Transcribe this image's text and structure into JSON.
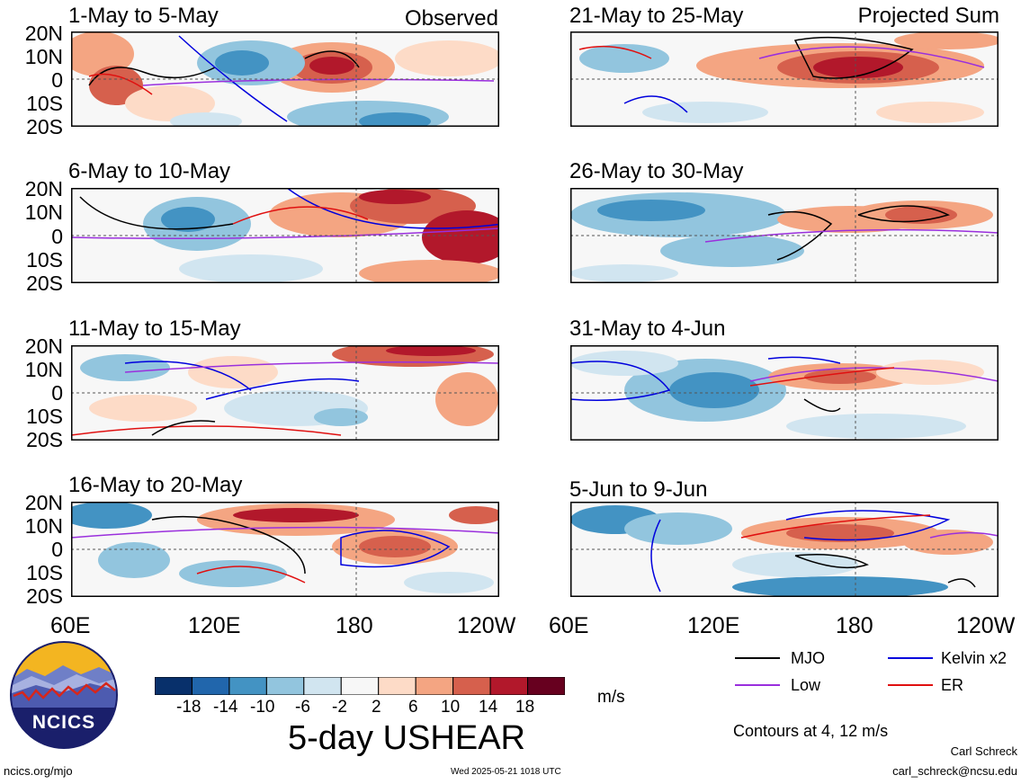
{
  "chart_data": {
    "type": "heatmap",
    "title": "5-day USHEAR",
    "units": "m/s",
    "observed_label": "Observed",
    "projected_label": "Projected Sum",
    "y_ticks": [
      "20N",
      "10N",
      "0",
      "10S",
      "20S"
    ],
    "x_ticks": [
      "60E",
      "120E",
      "180",
      "120W"
    ],
    "x_ticks_right": [
      "60E",
      "120E",
      "180",
      "120W"
    ],
    "lat_range": [
      -20,
      20
    ],
    "lon_range": [
      60,
      240
    ],
    "colorbar_levels": [
      "-18",
      "-14",
      "-10",
      "-6",
      "-2",
      "2",
      "6",
      "10",
      "14",
      "18"
    ],
    "colorbar_colors": [
      "#08306b",
      "#2166ac",
      "#4393c3",
      "#92c5de",
      "#d1e5f0",
      "#f7f7f7",
      "#fddbc7",
      "#f4a582",
      "#d6604d",
      "#b2182b",
      "#67001f"
    ],
    "contour_note": "Contours at 4, 12 m/s",
    "contour_levels": [
      4,
      12
    ],
    "legend": [
      {
        "label": "MJO",
        "color": "#000000"
      },
      {
        "label": "Kelvin x2",
        "color": "#0000dd"
      },
      {
        "label": "Low",
        "color": "#9a2fdd"
      },
      {
        "label": "ER",
        "color": "#e01010"
      }
    ],
    "panels": [
      {
        "period": "1-May to 5-May",
        "group": "Observed"
      },
      {
        "period": "6-May to 10-May",
        "group": "Observed"
      },
      {
        "period": "11-May to 15-May",
        "group": "Observed"
      },
      {
        "period": "16-May to 20-May",
        "group": "Observed"
      },
      {
        "period": "21-May to 25-May",
        "group": "Projected Sum"
      },
      {
        "period": "26-May to 30-May",
        "group": "Projected Sum"
      },
      {
        "period": "31-May to 4-Jun",
        "group": "Projected Sum"
      },
      {
        "period": "5-Jun to 9-Jun",
        "group": "Projected Sum"
      }
    ]
  },
  "footer": {
    "logo_text": "NCICS",
    "url": "ncics.org/mjo",
    "timestamp": "Wed 2025-05-21 1018 UTC",
    "author": "Carl Schreck",
    "email": "carl_schreck@ncsu.edu"
  }
}
